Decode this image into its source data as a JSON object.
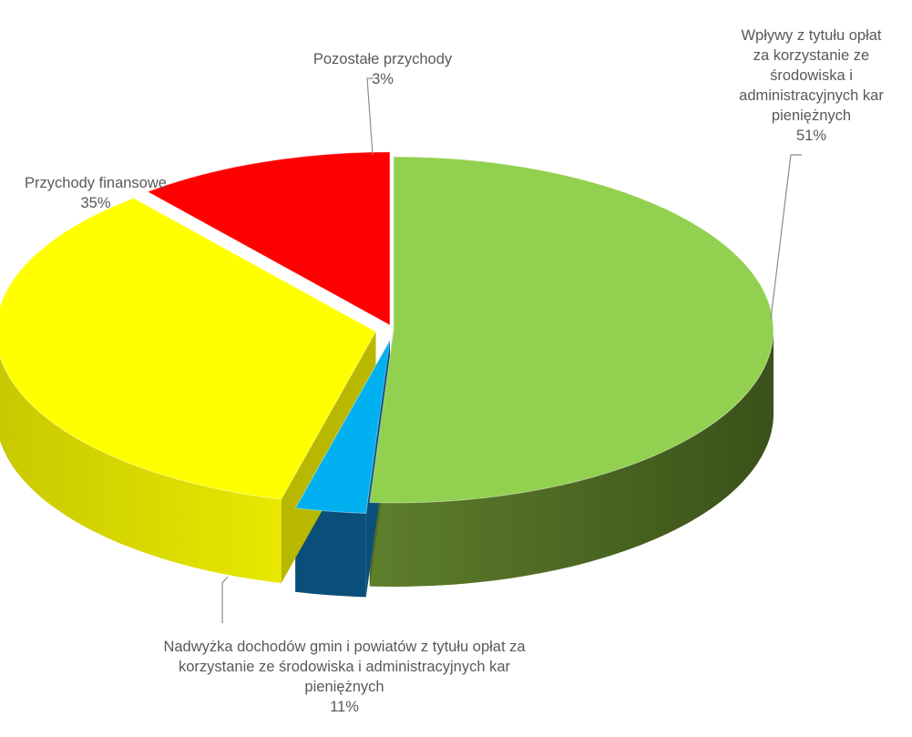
{
  "chart_data": {
    "type": "pie",
    "style": "3d-exploded",
    "legend": "none",
    "slices": [
      {
        "label": "Wpływy z tytułu opłat\nza korzystanie ze\nśrodowiska i\nadministracyjnych kar\npieniężnych",
        "value": 51,
        "value_label": "51%",
        "color": "#92D050",
        "side_color": "#4F6B25"
      },
      {
        "label": "Pozostałe przychody",
        "value": 3,
        "value_label": "3%",
        "color": "#00B0F0",
        "side_color": "#0A4E7A"
      },
      {
        "label": "Przychody finansowe",
        "value": 35,
        "value_label": "35%",
        "color": "#FFFF00",
        "side_color": "#B8B800"
      },
      {
        "label": "Nadwyżka dochodów gmin i powiatów z tytułu opłat za\nkorzystanie ze środowiska i administracyjnych kar\npieniężnych",
        "value": 11,
        "value_label": "11%",
        "color": "#FF0000",
        "side_color": "#A00000"
      }
    ]
  }
}
